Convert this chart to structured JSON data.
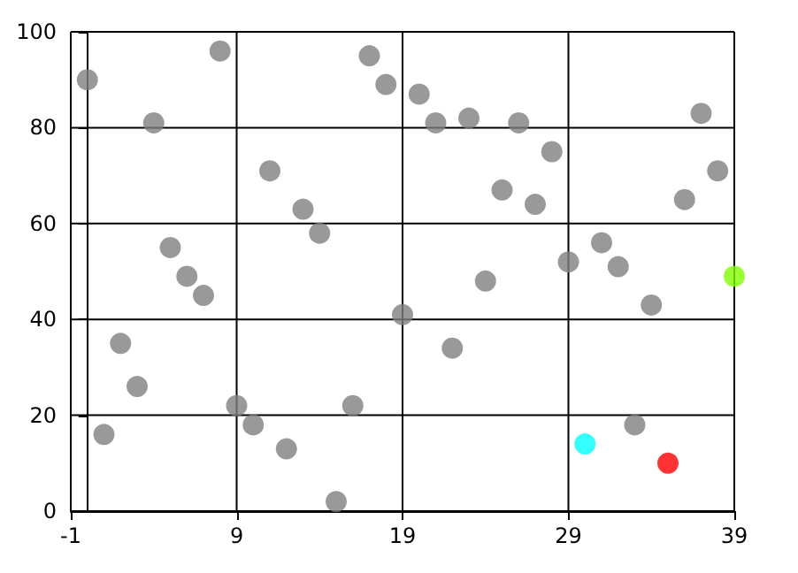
{
  "chart_data": {
    "type": "scatter",
    "x": [
      0,
      1,
      2,
      3,
      4,
      5,
      6,
      7,
      8,
      9,
      10,
      11,
      12,
      13,
      14,
      15,
      16,
      17,
      18,
      19,
      20,
      21,
      22,
      23,
      24,
      25,
      26,
      27,
      28,
      29,
      30,
      31,
      32,
      33,
      34,
      35,
      36,
      37,
      38,
      39
    ],
    "values": [
      90,
      16,
      35,
      26,
      81,
      55,
      49,
      45,
      96,
      22,
      18,
      71,
      13,
      63,
      58,
      2,
      22,
      95,
      89,
      41,
      87,
      81,
      34,
      82,
      48,
      67,
      81,
      64,
      75,
      52,
      14,
      56,
      51,
      18,
      43,
      10,
      65,
      83,
      71,
      49
    ],
    "colors": [
      "#808080",
      "#808080",
      "#808080",
      "#808080",
      "#808080",
      "#808080",
      "#808080",
      "#808080",
      "#808080",
      "#808080",
      "#808080",
      "#808080",
      "#808080",
      "#808080",
      "#808080",
      "#808080",
      "#808080",
      "#808080",
      "#808080",
      "#808080",
      "#808080",
      "#808080",
      "#808080",
      "#808080",
      "#808080",
      "#808080",
      "#808080",
      "#808080",
      "#808080",
      "#808080",
      "#00ffff",
      "#808080",
      "#808080",
      "#808080",
      "#808080",
      "#ff0000",
      "#808080",
      "#808080",
      "#808080",
      "#7fff00"
    ],
    "xlim": [
      -1,
      39
    ],
    "xticks": [
      -1,
      9,
      19,
      29,
      39
    ],
    "ylim": [
      0,
      100
    ],
    "yticks": [
      0,
      20,
      40,
      60,
      80,
      100
    ],
    "grid": true,
    "marker": "circle"
  }
}
